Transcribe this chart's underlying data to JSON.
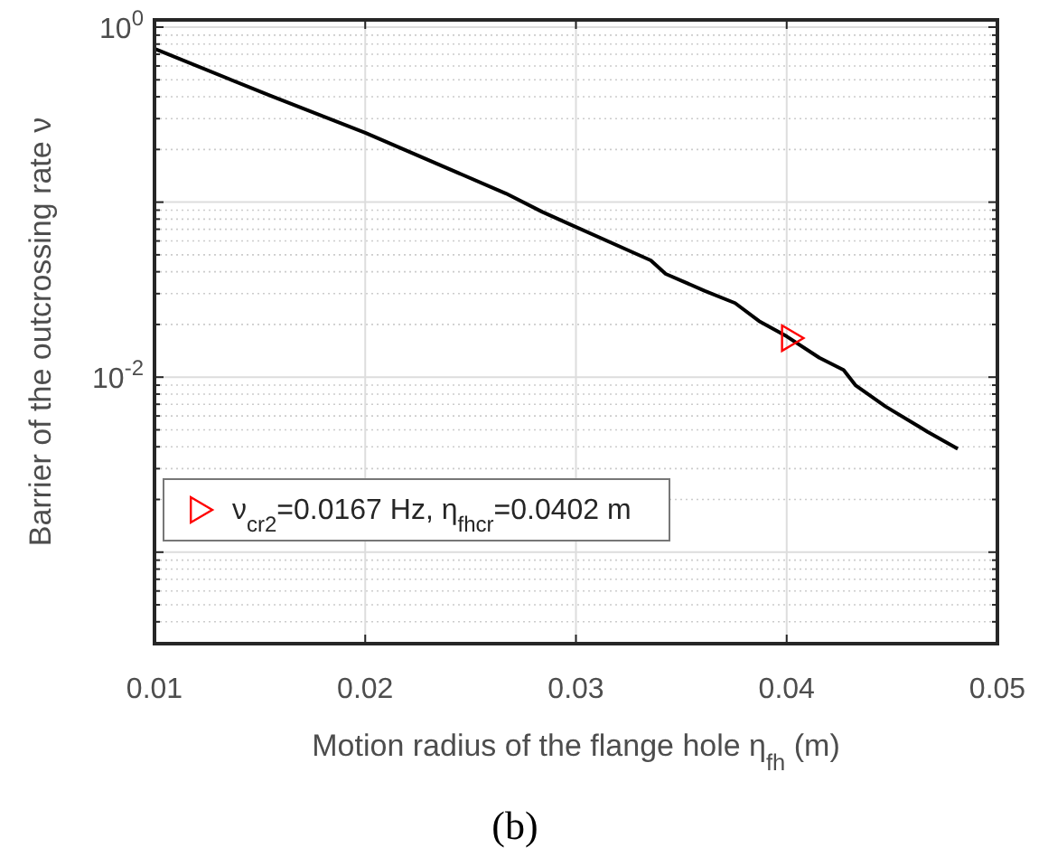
{
  "chart_data": {
    "type": "line",
    "xlabel": "Motion radius of the flange hole  η$_{fh}$ (m)",
    "ylabel": "Barrier of the outcrossing rate  ν",
    "xlim": [
      0.01,
      0.05
    ],
    "xticks": [
      0.01,
      0.02,
      0.03,
      0.04,
      0.05
    ],
    "ylim": [
      0.0003,
      1.1
    ],
    "yticks": [
      {
        "value": 1,
        "label": "10$^{0}$"
      },
      {
        "value": 0.1,
        "label": null
      },
      {
        "value": 0.01,
        "label": "10$^{-2}$"
      },
      {
        "value": 0.001,
        "label": null
      }
    ],
    "log": "y",
    "grid": true,
    "legend": "bottom left",
    "series": [
      {
        "color": "#000000",
        "marker": "none",
        "x": [
          0.01,
          0.01553,
          0.02,
          0.02668,
          0.0284,
          0.03,
          0.03355,
          0.03426,
          0.03612,
          0.03755,
          0.03869,
          0.04,
          0.04155,
          0.0427,
          0.04326,
          0.04469,
          0.04669,
          0.04812
        ],
        "values": [
          0.753,
          0.404,
          0.249,
          0.112,
          0.088,
          0.0721,
          0.0465,
          0.0389,
          0.0311,
          0.0265,
          0.0209,
          0.0171,
          0.0129,
          0.011,
          0.009,
          0.0068,
          0.00487,
          0.00389
        ]
      },
      {
        "type": "scatter",
        "name": "ν$_{cr2}$=0.0167 Hz, η$_{fhcr}$=0.0402 m",
        "color": "#ff0000",
        "marker": "triangle",
        "x": [
          0.0402
        ],
        "values": [
          0.0167
        ]
      }
    ],
    "annotations": [
      "(b)"
    ]
  }
}
